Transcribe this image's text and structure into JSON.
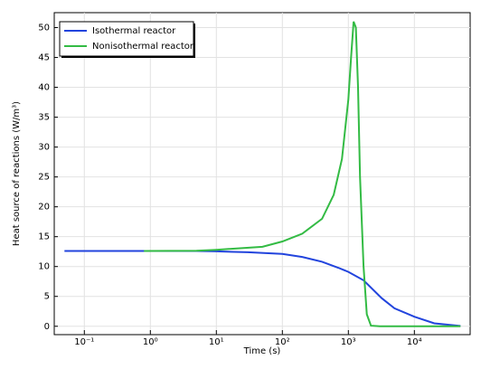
{
  "chart_data": {
    "type": "line",
    "xlabel": "Time (s)",
    "ylabel": "Heat source of reactions (W/m³)",
    "xscale": "log",
    "xlim": [
      0.035,
      70000
    ],
    "ylim": [
      -1.4,
      52.5
    ],
    "xticks": [
      {
        "value": 0.1,
        "label": "10⁻¹"
      },
      {
        "value": 1,
        "label": "10⁰"
      },
      {
        "value": 10,
        "label": "10¹"
      },
      {
        "value": 100,
        "label": "10²"
      },
      {
        "value": 1000,
        "label": "10³"
      },
      {
        "value": 10000,
        "label": "10⁴"
      }
    ],
    "yticks": [
      0,
      5,
      10,
      15,
      20,
      25,
      30,
      35,
      40,
      45,
      50
    ],
    "grid": true,
    "legend": "upper left",
    "series": [
      {
        "name": "Isothermal reactor",
        "color": "#2244dd",
        "x": [
          0.05,
          0.1,
          1,
          5,
          10,
          30,
          100,
          200,
          400,
          700,
          1000,
          1700,
          3200,
          5000,
          10000,
          20000,
          50000
        ],
        "values": [
          12.6,
          12.6,
          12.6,
          12.6,
          12.55,
          12.4,
          12.1,
          11.6,
          10.8,
          9.8,
          9.1,
          7.7,
          4.7,
          3.0,
          1.6,
          0.5,
          0.05
        ]
      },
      {
        "name": "Nonisothermal reactor",
        "color": "#33bb44",
        "x": [
          0.8,
          5,
          10,
          50,
          100,
          200,
          400,
          600,
          800,
          1000,
          1100,
          1200,
          1300,
          1400,
          1500,
          1700,
          1900,
          2200,
          3000,
          50000
        ],
        "values": [
          12.6,
          12.65,
          12.8,
          13.3,
          14.2,
          15.5,
          18,
          22,
          28,
          38,
          45,
          51,
          50,
          40,
          25,
          10,
          2,
          0.1,
          0,
          0
        ]
      }
    ]
  }
}
